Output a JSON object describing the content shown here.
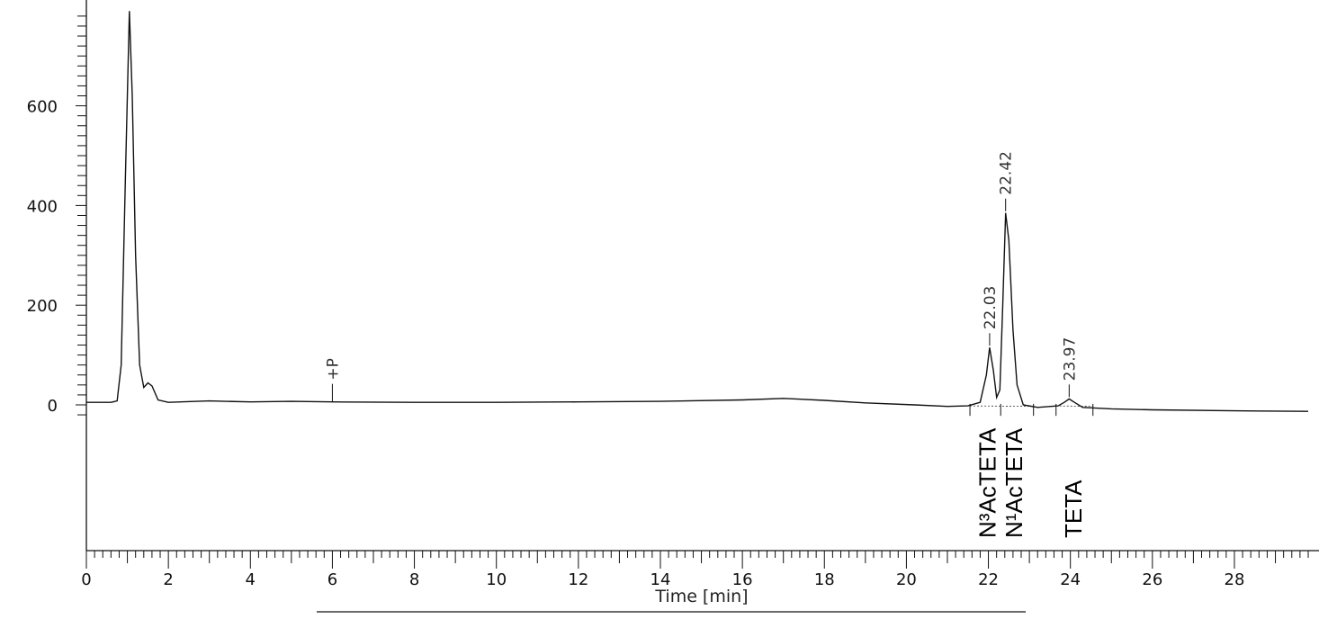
{
  "chart_data": {
    "type": "line",
    "title": "",
    "xlabel": "Time [min]",
    "ylabel": "",
    "xlim": [
      0,
      29.8
    ],
    "ylim": [
      -290,
      790
    ],
    "x_ticks": [
      0,
      2,
      4,
      6,
      8,
      10,
      12,
      14,
      16,
      18,
      20,
      22,
      24,
      26,
      28
    ],
    "y_ticks": [
      0,
      200,
      400,
      600
    ],
    "grid": false,
    "legend": "none",
    "series": [
      {
        "points": [
          [
            0.0,
            5
          ],
          [
            0.6,
            5
          ],
          [
            0.75,
            8
          ],
          [
            0.85,
            80
          ],
          [
            0.95,
            450
          ],
          [
            1.05,
            790
          ],
          [
            1.12,
            620
          ],
          [
            1.2,
            300
          ],
          [
            1.3,
            80
          ],
          [
            1.4,
            35
          ],
          [
            1.5,
            44
          ],
          [
            1.6,
            38
          ],
          [
            1.75,
            10
          ],
          [
            2.0,
            5
          ],
          [
            3.0,
            8
          ],
          [
            4.0,
            6
          ],
          [
            5.0,
            7
          ],
          [
            6.0,
            6
          ],
          [
            8.0,
            5
          ],
          [
            10.0,
            5
          ],
          [
            12.0,
            6
          ],
          [
            14.0,
            7
          ],
          [
            16.0,
            10
          ],
          [
            17.0,
            13
          ],
          [
            18.0,
            9
          ],
          [
            19.0,
            4
          ],
          [
            20.2,
            0
          ],
          [
            21.0,
            -3
          ],
          [
            21.5,
            -2
          ],
          [
            21.8,
            5
          ],
          [
            21.95,
            60
          ],
          [
            22.03,
            115
          ],
          [
            22.12,
            70
          ],
          [
            22.2,
            15
          ],
          [
            22.28,
            30
          ],
          [
            22.35,
            200
          ],
          [
            22.42,
            385
          ],
          [
            22.5,
            330
          ],
          [
            22.6,
            150
          ],
          [
            22.7,
            40
          ],
          [
            22.85,
            0
          ],
          [
            23.2,
            -5
          ],
          [
            23.7,
            -2
          ],
          [
            23.85,
            5
          ],
          [
            23.97,
            12
          ],
          [
            24.1,
            5
          ],
          [
            24.3,
            -5
          ],
          [
            25.0,
            -8
          ],
          [
            26.0,
            -10
          ],
          [
            28.0,
            -12
          ],
          [
            29.8,
            -13
          ]
        ]
      }
    ],
    "peaks": [
      {
        "time": 22.03,
        "label": "22.03",
        "height": 115
      },
      {
        "time": 22.42,
        "label": "22.42",
        "height": 385
      },
      {
        "time": 23.97,
        "label": "23.97",
        "height": 12
      }
    ],
    "event_marker": {
      "time": 6.0,
      "label": "+P",
      "height": 6
    },
    "compounds": [
      {
        "time": 22.0,
        "name": "N³AcTETA"
      },
      {
        "time": 22.65,
        "name": "N¹AcTETA"
      },
      {
        "time": 24.1,
        "name": "TETA"
      }
    ],
    "integration_bounds": [
      21.55,
      22.3,
      23.1,
      23.65,
      24.55
    ],
    "baseline_segments": [
      [
        21.55,
        23.1
      ],
      [
        23.65,
        24.55
      ]
    ]
  }
}
